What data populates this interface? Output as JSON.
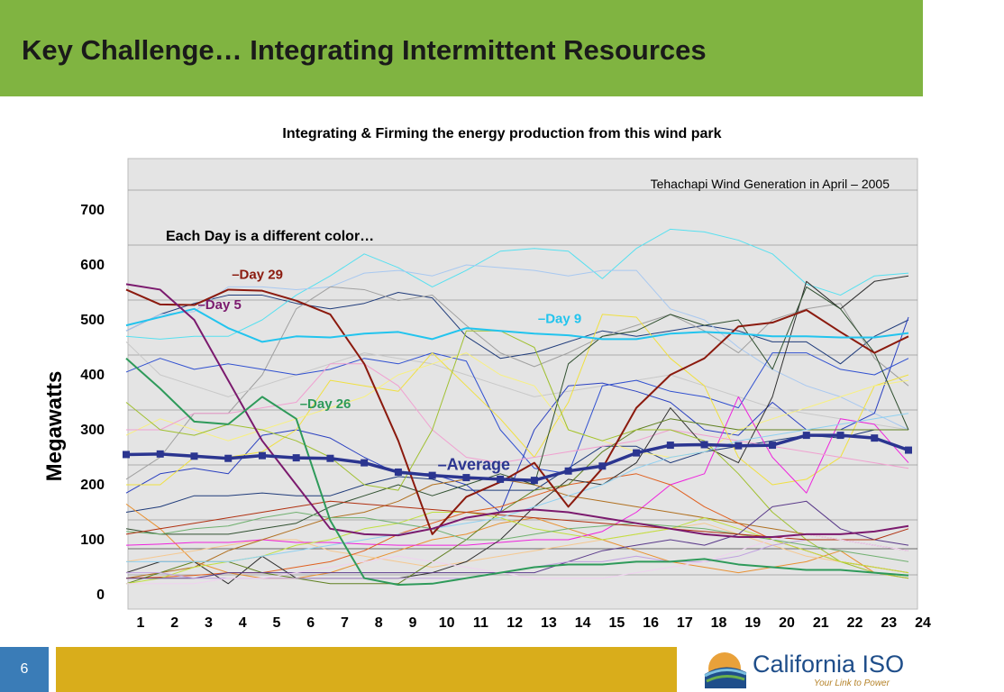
{
  "slide": {
    "title": "Key Challenge… Integrating Intermittent Resources",
    "page_number": "6",
    "logo": {
      "name": "California ISO",
      "tagline": "Your Link to Power"
    },
    "colors": {
      "header": "#80b441",
      "footer_gold": "#d9ad1b",
      "footer_blue": "#3a7cb7",
      "logo_blue": "#1f4e8a"
    }
  },
  "chart_data": {
    "type": "line",
    "title": "Integrating & Firming the energy production from this wind park",
    "subtitle": "Tehachapi Wind Generation in April – 2005",
    "annotation": "Each Day is a different color…",
    "ylabel": "Megawatts",
    "xlabel": "",
    "x": [
      1,
      2,
      3,
      4,
      5,
      6,
      7,
      8,
      9,
      10,
      11,
      12,
      13,
      14,
      15,
      16,
      17,
      18,
      19,
      20,
      21,
      22,
      23,
      24
    ],
    "yticks": [
      0,
      100,
      200,
      300,
      400,
      500,
      600,
      700
    ],
    "ylim": [
      0,
      800
    ],
    "grid": "horizontal",
    "legend": "inline labels",
    "series": [
      {
        "name": "Day 29",
        "color": "#8b1a0e",
        "width": 2,
        "label_at": 4,
        "values": [
          555,
          528,
          527,
          555,
          553,
          535,
          510,
          420,
          280,
          110,
          178,
          205,
          240,
          160,
          230,
          340,
          400,
          430,
          488,
          495,
          518,
          478,
          440,
          470
        ]
      },
      {
        "name": "Day 9",
        "color": "#22c4ee",
        "width": 2,
        "label_at": 13,
        "values": [
          490,
          505,
          520,
          485,
          460,
          470,
          468,
          475,
          478,
          465,
          485,
          480,
          475,
          472,
          465,
          465,
          475,
          478,
          475,
          470,
          470,
          468,
          468,
          476
        ]
      },
      {
        "name": "Day 5",
        "color": "#7b1a6e",
        "width": 2,
        "label_at": 3,
        "values": [
          565,
          555,
          500,
          390,
          280,
          200,
          120,
          110,
          108,
          120,
          140,
          150,
          155,
          150,
          140,
          130,
          120,
          110,
          105,
          105,
          110,
          110,
          115,
          125
        ]
      },
      {
        "name": "Day 26",
        "color": "#2e9a5a",
        "width": 2,
        "label_at": 6,
        "values": [
          430,
          375,
          315,
          310,
          360,
          320,
          135,
          30,
          18,
          20,
          30,
          40,
          50,
          55,
          55,
          60,
          60,
          65,
          55,
          50,
          45,
          45,
          40,
          35
        ]
      },
      {
        "name": "Average",
        "color": "#2b3590",
        "width": 3.5,
        "markers": true,
        "label_at": 10,
        "values": [
          255,
          256,
          252,
          248,
          253,
          249,
          248,
          240,
          223,
          217,
          213,
          210,
          208,
          225,
          234,
          258,
          272,
          273,
          271,
          272,
          290,
          290,
          285,
          263
        ]
      },
      {
        "name": "",
        "color": "#1f3b7a",
        "width": 1,
        "values": [
          480,
          510,
          530,
          545,
          545,
          530,
          520,
          530,
          550,
          540,
          470,
          430,
          440,
          460,
          480,
          470,
          480,
          490,
          480,
          460,
          460,
          420,
          470,
          500
        ]
      },
      {
        "name": "",
        "color": "#56e0f0",
        "width": 1,
        "values": [
          470,
          465,
          470,
          470,
          500,
          545,
          580,
          620,
          595,
          560,
          590,
          625,
          630,
          625,
          575,
          630,
          665,
          660,
          645,
          620,
          565,
          545,
          580,
          585
        ]
      },
      {
        "name": "",
        "color": "#a8c8f0",
        "width": 1,
        "values": [
          480,
          510,
          515,
          560,
          560,
          555,
          560,
          585,
          590,
          580,
          600,
          595,
          590,
          580,
          590,
          590,
          520,
          500,
          450,
          410,
          380,
          360,
          330,
          300
        ]
      },
      {
        "name": "",
        "color": "#a0a0a0",
        "width": 1,
        "values": [
          210,
          250,
          330,
          330,
          400,
          520,
          560,
          555,
          535,
          545,
          490,
          440,
          415,
          440,
          470,
          490,
          510,
          480,
          440,
          500,
          520,
          530,
          430,
          380
        ]
      },
      {
        "name": "",
        "color": "#c8c8c8",
        "width": 1,
        "values": [
          460,
          400,
          380,
          360,
          380,
          400,
          420,
          440,
          430,
          420,
          400,
          380,
          360,
          370,
          380,
          390,
          400,
          380,
          360,
          340,
          330,
          320,
          310,
          300
        ]
      },
      {
        "name": "",
        "color": "#2a40c0",
        "width": 1,
        "values": [
          185,
          220,
          230,
          220,
          290,
          300,
          285,
          250,
          220,
          220,
          200,
          150,
          300,
          380,
          385,
          370,
          350,
          300,
          290,
          350,
          300,
          300,
          330,
          505
        ]
      },
      {
        "name": "",
        "color": "#1f3b7a",
        "width": 1,
        "values": [
          150,
          160,
          180,
          180,
          185,
          180,
          180,
          200,
          215,
          210,
          190,
          190,
          190,
          230,
          270,
          270,
          240,
          260,
          270,
          280,
          290,
          285,
          300,
          300
        ]
      },
      {
        "name": "",
        "color": "#3050d0",
        "width": 1,
        "values": [
          405,
          430,
          410,
          420,
          410,
          400,
          410,
          430,
          420,
          440,
          425,
          300,
          230,
          220,
          380,
          390,
          370,
          360,
          340,
          440,
          440,
          410,
          400,
          430
        ]
      },
      {
        "name": "",
        "color": "#f0e040",
        "width": 1,
        "values": [
          200,
          200,
          250,
          250,
          260,
          300,
          390,
          380,
          370,
          440,
          380,
          320,
          250,
          350,
          510,
          505,
          430,
          380,
          250,
          200,
          210,
          250,
          380,
          400
        ]
      },
      {
        "name": "",
        "color": "#f8f080",
        "width": 1,
        "values": [
          290,
          320,
          300,
          280,
          300,
          320,
          340,
          360,
          400,
          420,
          440,
          400,
          380,
          300,
          280,
          260,
          250,
          260,
          300,
          320,
          340,
          360,
          380,
          390
        ]
      },
      {
        "name": "",
        "color": "#e89030",
        "width": 1,
        "values": [
          165,
          120,
          60,
          40,
          30,
          30,
          40,
          60,
          80,
          100,
          110,
          130,
          140,
          120,
          100,
          80,
          60,
          50,
          40,
          50,
          60,
          80,
          40,
          30
        ]
      },
      {
        "name": "",
        "color": "#f5c890",
        "width": 1,
        "values": [
          60,
          70,
          80,
          90,
          100,
          100,
          80,
          70,
          60,
          50,
          60,
          70,
          80,
          90,
          100,
          110,
          120,
          130,
          110,
          90,
          70,
          60,
          50,
          40
        ]
      },
      {
        "name": "",
        "color": "#ee22dd",
        "width": 1,
        "values": [
          90,
          92,
          95,
          95,
          100,
          95,
          95,
          92,
          90,
          90,
          90,
          95,
          100,
          100,
          115,
          150,
          200,
          220,
          360,
          250,
          185,
          320,
          310,
          240
        ]
      },
      {
        "name": "",
        "color": "#f0a0d0",
        "width": 1,
        "values": [
          300,
          300,
          330,
          330,
          340,
          350,
          420,
          420,
          380,
          300,
          250,
          240,
          250,
          260,
          270,
          280,
          300,
          290,
          280,
          270,
          260,
          250,
          240,
          230
        ]
      },
      {
        "name": "",
        "color": "#b07020",
        "width": 1,
        "values": [
          30,
          40,
          50,
          80,
          100,
          120,
          140,
          150,
          170,
          200,
          210,
          210,
          200,
          180,
          170,
          160,
          150,
          140,
          130,
          120,
          110,
          100,
          90,
          80
        ]
      },
      {
        "name": "",
        "color": "#e06020",
        "width": 1,
        "values": [
          30,
          32,
          35,
          40,
          40,
          50,
          60,
          80,
          110,
          130,
          150,
          160,
          180,
          200,
          210,
          220,
          200,
          160,
          130,
          100,
          80,
          60,
          50,
          40
        ]
      },
      {
        "name": "",
        "color": "#303030",
        "width": 1,
        "values": [
          40,
          60,
          60,
          20,
          70,
          30,
          30,
          30,
          30,
          40,
          60,
          100,
          160,
          210,
          200,
          240,
          340,
          270,
          240,
          360,
          570,
          520,
          570,
          580
        ]
      },
      {
        "name": "",
        "color": "#608020",
        "width": 1,
        "values": [
          20,
          40,
          60,
          60,
          40,
          30,
          20,
          20,
          20,
          60,
          100,
          150,
          190,
          200,
          260,
          300,
          320,
          310,
          300,
          300,
          300,
          300,
          300,
          300
        ]
      },
      {
        "name": "",
        "color": "#305030",
        "width": 1,
        "values": [
          120,
          110,
          110,
          110,
          120,
          130,
          160,
          180,
          200,
          180,
          200,
          220,
          200,
          420,
          470,
          480,
          510,
          490,
          500,
          410,
          560,
          520,
          440,
          300
        ]
      },
      {
        "name": "",
        "color": "#a0c030",
        "width": 1,
        "values": [
          350,
          300,
          290,
          310,
          300,
          280,
          250,
          200,
          190,
          300,
          480,
          480,
          450,
          300,
          280,
          300,
          300,
          280,
          220,
          150,
          100,
          60,
          40,
          30
        ]
      },
      {
        "name": "",
        "color": "#c0e040",
        "width": 1,
        "values": [
          20,
          30,
          50,
          60,
          70,
          90,
          100,
          120,
          130,
          150,
          150,
          140,
          120,
          110,
          100,
          110,
          120,
          140,
          120,
          100,
          80,
          60,
          50,
          40
        ]
      },
      {
        "name": "",
        "color": "#5a3a8a",
        "width": 1,
        "values": [
          30,
          30,
          30,
          40,
          40,
          40,
          40,
          40,
          40,
          40,
          40,
          40,
          40,
          60,
          80,
          90,
          100,
          90,
          110,
          160,
          170,
          120,
          100,
          90
        ]
      },
      {
        "name": "",
        "color": "#c0a0e0",
        "width": 1,
        "values": [
          40,
          40,
          30,
          30,
          30,
          30,
          30,
          30,
          30,
          30,
          30,
          40,
          50,
          60,
          60,
          70,
          60,
          60,
          70,
          90,
          100,
          100,
          90,
          80
        ]
      },
      {
        "name": "",
        "color": "#70b070",
        "width": 1,
        "values": [
          115,
          110,
          120,
          125,
          140,
          150,
          140,
          140,
          130,
          120,
          100,
          100,
          110,
          120,
          125,
          130,
          125,
          120,
          110,
          100,
          90,
          80,
          70,
          60
        ]
      },
      {
        "name": "",
        "color": "#b03010",
        "width": 1,
        "values": [
          110,
          120,
          130,
          140,
          150,
          160,
          170,
          165,
          160,
          155,
          150,
          145,
          140,
          135,
          130,
          125,
          120,
          115,
          110,
          105,
          100,
          100,
          100,
          120
        ]
      },
      {
        "name": "",
        "color": "#90d0f0",
        "width": 1,
        "values": [
          60,
          60,
          60,
          60,
          70,
          80,
          90,
          100,
          110,
          120,
          130,
          140,
          160,
          180,
          200,
          230,
          250,
          260,
          280,
          290,
          300,
          310,
          320,
          330
        ]
      },
      {
        "name": "",
        "color": "#f0d0f0",
        "width": 1,
        "values": [
          20,
          20,
          20,
          30,
          30,
          40,
          50,
          60,
          70,
          60,
          50,
          40,
          30,
          30,
          30,
          40,
          50,
          60,
          80,
          100,
          110,
          100,
          90,
          80
        ]
      }
    ]
  }
}
